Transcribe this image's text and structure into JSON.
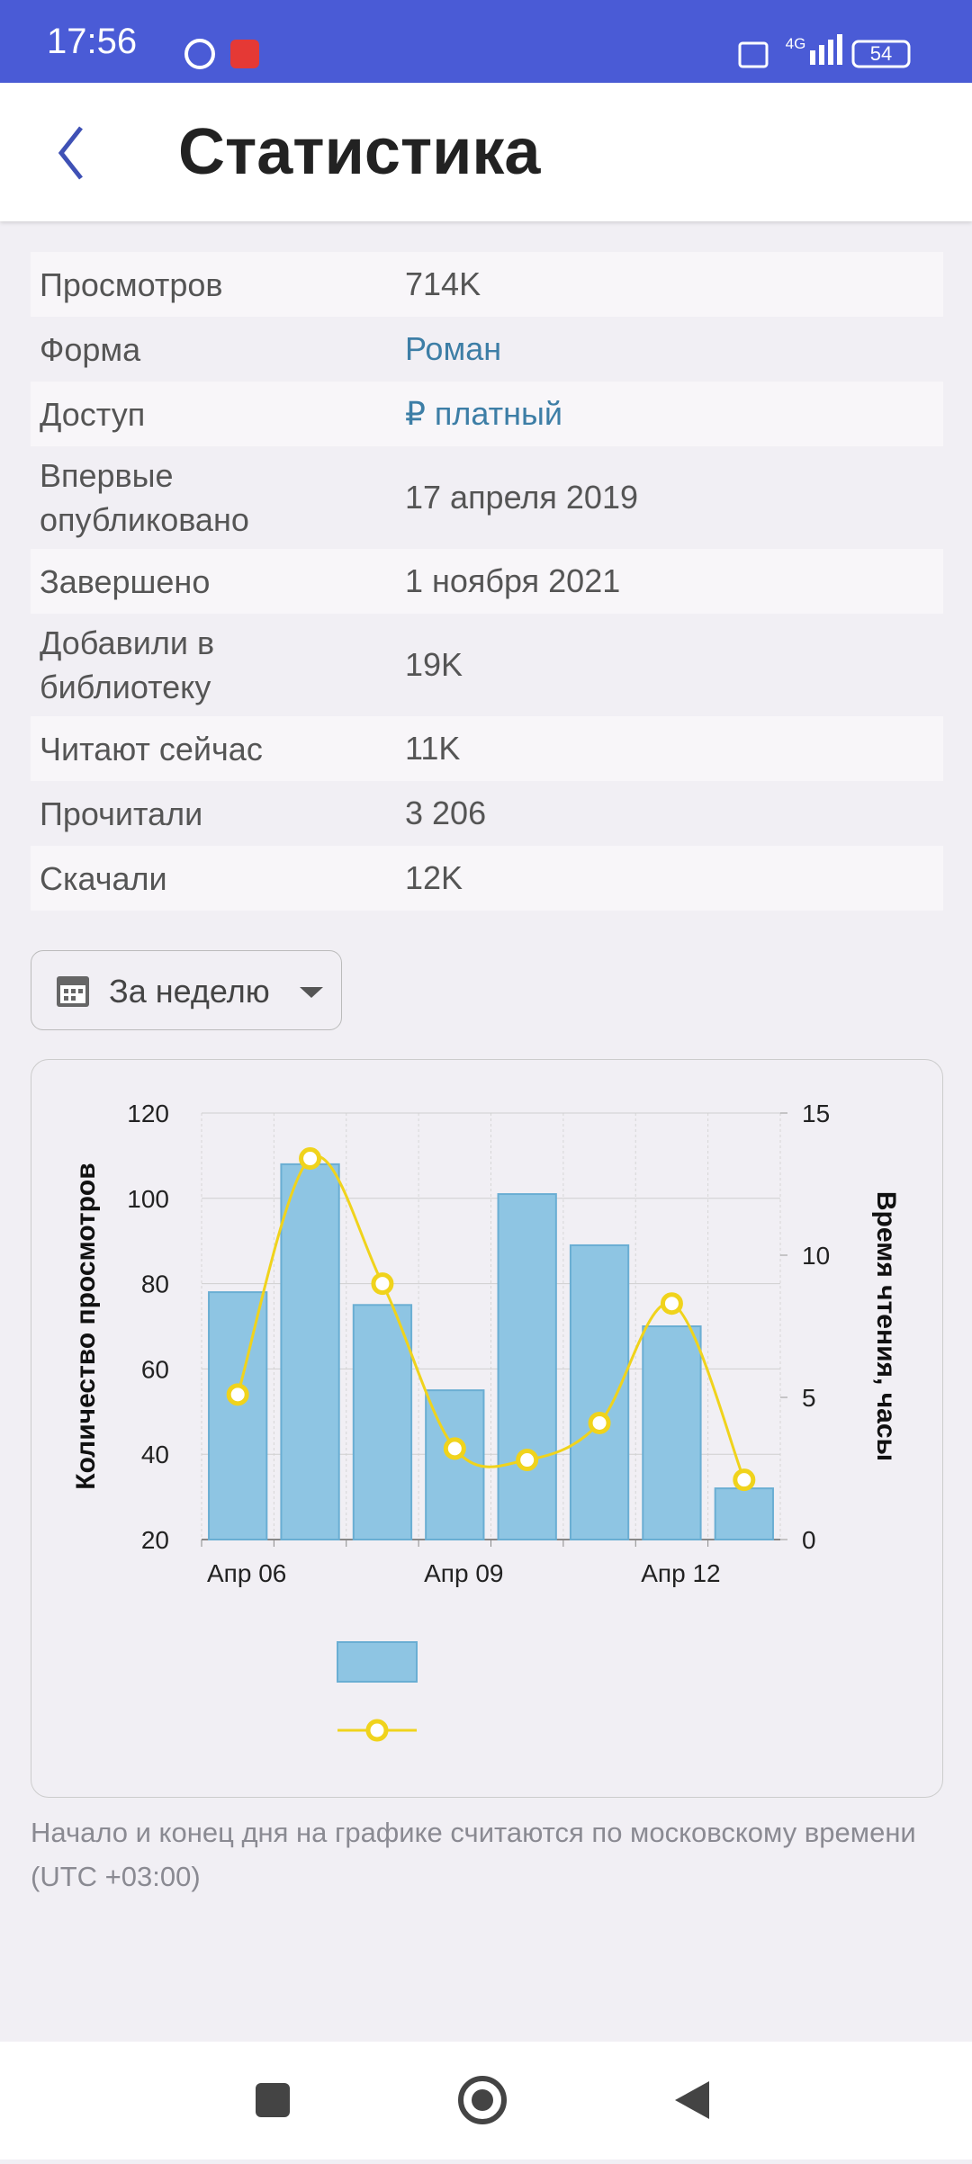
{
  "status_bar": {
    "time": "17:56",
    "network": "4G",
    "battery": "54"
  },
  "header": {
    "title": "Статистика"
  },
  "stats": {
    "rows": [
      {
        "label": "Просмотров",
        "value": "714K"
      },
      {
        "label": "Форма",
        "value": "Роман"
      },
      {
        "label": "Доступ",
        "value": "₽ платный"
      },
      {
        "label": "Впервые опубликовано",
        "value": "17 апреля 2019"
      },
      {
        "label": "Завершено",
        "value": "1 ноября 2021"
      },
      {
        "label": "Добавили в библиотеку",
        "value": "19K"
      },
      {
        "label": "Читают сейчас",
        "value": "11K"
      },
      {
        "label": "Прочитали",
        "value": "3 206"
      },
      {
        "label": "Скачали",
        "value": "12K"
      }
    ]
  },
  "period": "За неделю",
  "chart_data": {
    "type": "combo",
    "ylabel": "Количество просмотров",
    "y2label": "Время чтения, часы",
    "categories": [
      "Апр 06",
      null,
      null,
      "Апр 09",
      null,
      null,
      "Апр 12",
      null
    ],
    "series": [
      {
        "type": "bar",
        "color": "#8ec5e3",
        "values": [
          78,
          108,
          75,
          55,
          101,
          89,
          70,
          32
        ]
      },
      {
        "type": "line",
        "color": "#f0d31c",
        "axis": "y2",
        "values": [
          5.1,
          13.4,
          9.0,
          3.2,
          2.8,
          4.1,
          8.3,
          2.1
        ]
      }
    ],
    "ylim": [
      20,
      120
    ],
    "yticks": [
      20,
      40,
      60,
      80,
      100,
      120
    ],
    "y2lim": [
      0,
      15
    ],
    "y2ticks": [
      0,
      5,
      10,
      15
    ],
    "grid": true
  },
  "footnote": "Начало и конец дня на графике считаются по московскому времени (UTC +03:00)"
}
